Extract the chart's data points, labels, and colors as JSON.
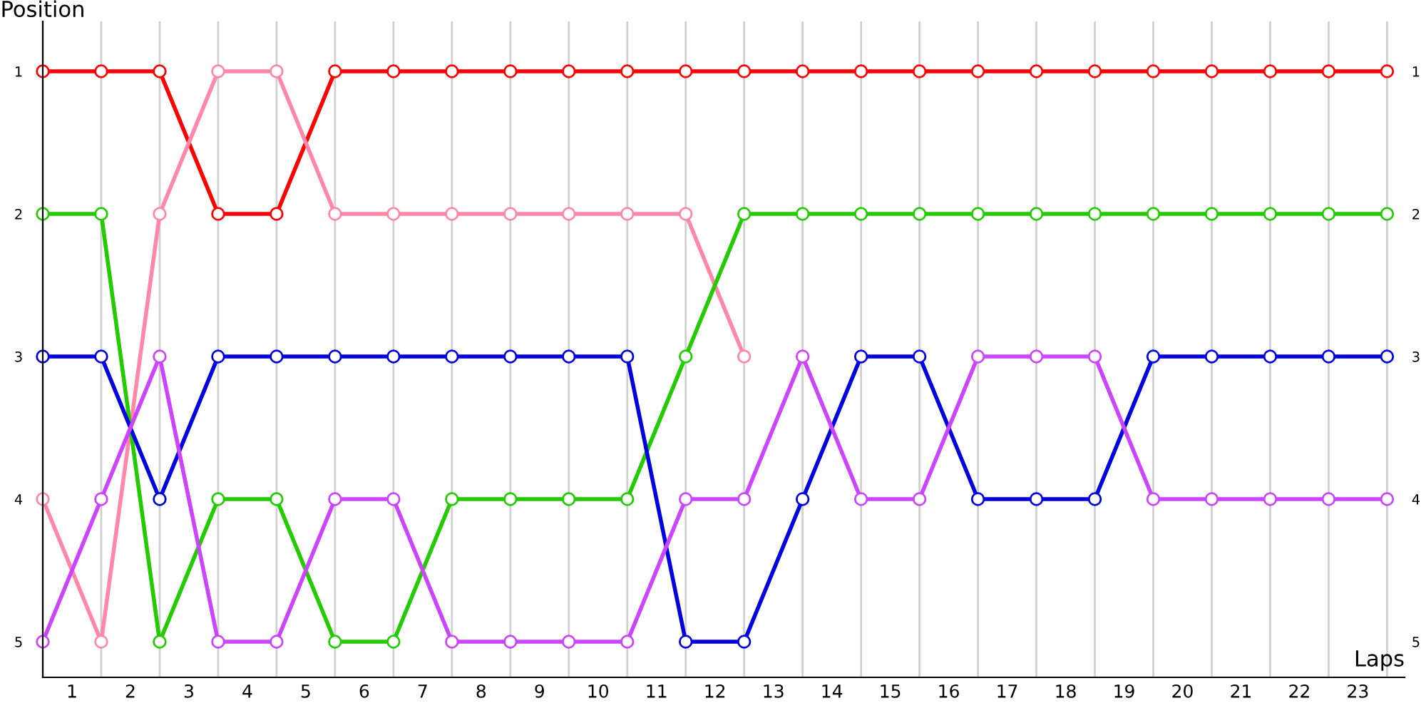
{
  "chart_data": {
    "type": "line",
    "xlabel": "Laps",
    "ylabel": "Position",
    "x": [
      0,
      1,
      2,
      3,
      4,
      5,
      6,
      7,
      8,
      9,
      10,
      11,
      12,
      13,
      14,
      15,
      16,
      17,
      18,
      19,
      20,
      21,
      22,
      23
    ],
    "series": [
      {
        "color": "#ff0000",
        "values": [
          1,
          1,
          1,
          2,
          2,
          1,
          1,
          1,
          1,
          1,
          1,
          1,
          1,
          1,
          1,
          1,
          1,
          1,
          1,
          1,
          1,
          1,
          1,
          1
        ]
      },
      {
        "color": "#ff88a8",
        "values": [
          4,
          5,
          2,
          1,
          1,
          2,
          2,
          2,
          2,
          2,
          2,
          2,
          3,
          null,
          null,
          null,
          null,
          null,
          null,
          null,
          null,
          null,
          null,
          null
        ]
      },
      {
        "color": "#22cc00",
        "values": [
          2,
          2,
          5,
          4,
          4,
          5,
          5,
          4,
          4,
          4,
          4,
          3,
          2,
          2,
          2,
          2,
          2,
          2,
          2,
          2,
          2,
          2,
          2,
          2
        ]
      },
      {
        "color": "#0000e0",
        "values": [
          3,
          3,
          4,
          3,
          3,
          3,
          3,
          3,
          3,
          3,
          3,
          5,
          5,
          4,
          3,
          3,
          4,
          4,
          4,
          3,
          3,
          3,
          3,
          3
        ]
      },
      {
        "color": "#cc44ff",
        "values": [
          5,
          4,
          3,
          5,
          5,
          4,
          4,
          5,
          5,
          5,
          5,
          4,
          4,
          3,
          4,
          4,
          3,
          3,
          3,
          4,
          4,
          4,
          4,
          4
        ]
      }
    ],
    "xlim": [
      0,
      23.3
    ],
    "xticks": [
      {
        "value": 0,
        "label": null
      },
      {
        "value": 1,
        "label": null
      },
      {
        "value": 2,
        "label": null
      },
      {
        "value": 3,
        "label": null
      },
      {
        "value": 4,
        "label": null
      },
      {
        "value": 5,
        "label": null
      },
      {
        "value": 6,
        "label": null
      },
      {
        "value": 7,
        "label": null
      },
      {
        "value": 8,
        "label": null
      },
      {
        "value": 9,
        "label": null
      },
      {
        "value": 10,
        "label": null
      },
      {
        "value": 11,
        "label": null
      },
      {
        "value": 12,
        "label": null
      },
      {
        "value": 13,
        "label": null
      },
      {
        "value": 14,
        "label": null
      },
      {
        "value": 15,
        "label": null
      },
      {
        "value": 16,
        "label": null
      },
      {
        "value": 17,
        "label": null
      },
      {
        "value": 18,
        "label": null
      },
      {
        "value": 19,
        "label": null
      },
      {
        "value": 20,
        "label": null
      },
      {
        "value": 21,
        "label": null
      },
      {
        "value": 22,
        "label": null
      },
      {
        "value": 23,
        "label": null
      },
      {
        "value": 0.5,
        "label": "1"
      },
      {
        "value": 1.5,
        "label": "2"
      },
      {
        "value": 2.5,
        "label": "3"
      },
      {
        "value": 3.5,
        "label": "4"
      },
      {
        "value": 4.5,
        "label": "5"
      },
      {
        "value": 5.5,
        "label": "6"
      },
      {
        "value": 6.5,
        "label": "7"
      },
      {
        "value": 7.5,
        "label": "8"
      },
      {
        "value": 8.5,
        "label": "9"
      },
      {
        "value": 9.5,
        "label": "10"
      },
      {
        "value": 10.5,
        "label": "11"
      },
      {
        "value": 11.5,
        "label": "12"
      },
      {
        "value": 12.5,
        "label": "13"
      },
      {
        "value": 13.5,
        "label": "14"
      },
      {
        "value": 14.5,
        "label": "15"
      },
      {
        "value": 15.5,
        "label": "16"
      },
      {
        "value": 16.5,
        "label": "17"
      },
      {
        "value": 17.5,
        "label": "18"
      },
      {
        "value": 18.5,
        "label": "19"
      },
      {
        "value": 19.5,
        "label": "20"
      },
      {
        "value": 20.5,
        "label": "21"
      },
      {
        "value": 21.5,
        "label": "22"
      },
      {
        "value": 22.5,
        "label": "23"
      }
    ],
    "ylim": [
      5.25,
      0.65
    ],
    "yticks": [
      1,
      2,
      3,
      4,
      5
    ],
    "y2lim": [
      5.25,
      0.65
    ],
    "y2ticks": [
      1,
      2,
      3,
      4,
      5
    ],
    "grid": "x",
    "marker": "circle",
    "line_style": "solid"
  }
}
